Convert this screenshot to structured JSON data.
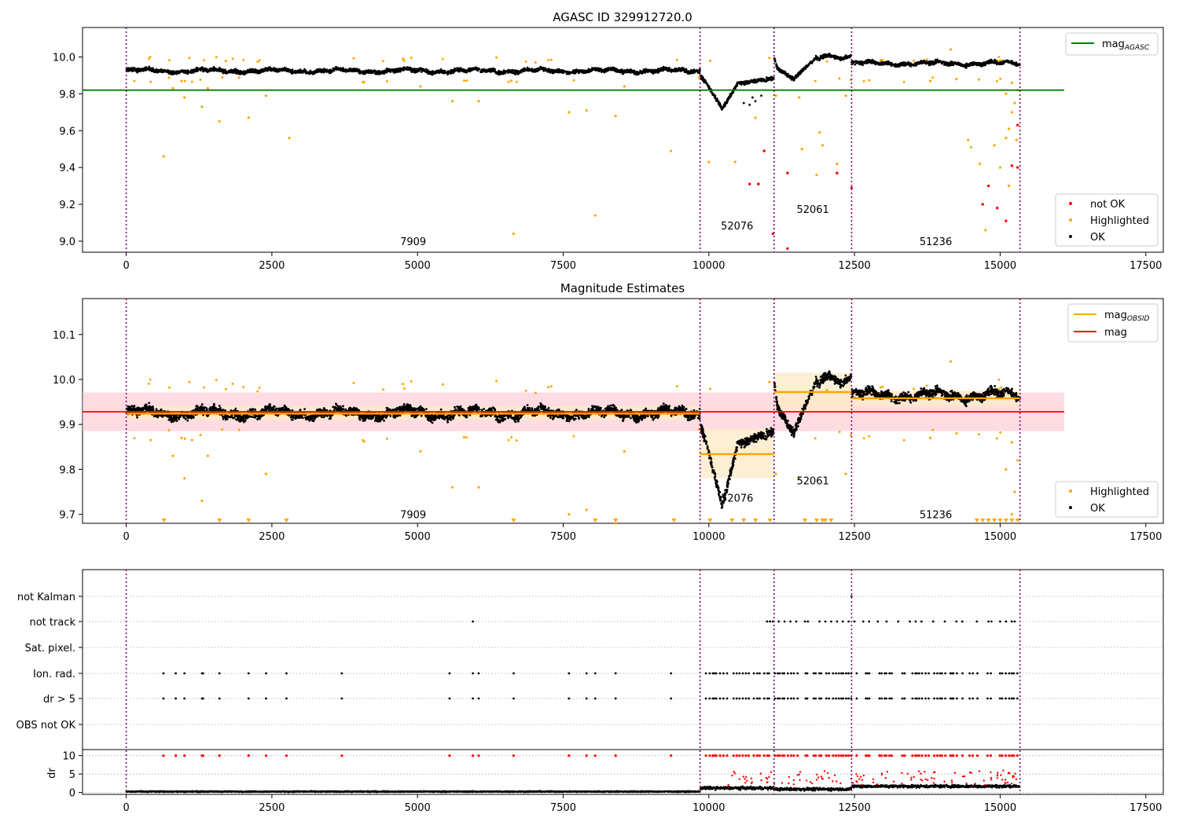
{
  "chart_data": [
    {
      "type": "scatter",
      "title": "AGASC ID 329912720.0",
      "xlim": [
        -750,
        17800
      ],
      "ylim": [
        8.94,
        10.16
      ],
      "xticks": [
        0,
        2500,
        5000,
        7500,
        10000,
        12500,
        15000,
        17500
      ],
      "yticks": [
        9.0,
        9.2,
        9.4,
        9.6,
        9.8,
        10.0
      ],
      "ytick_labels": [
        "9.0",
        "9.2",
        "9.4",
        "9.6",
        "9.8",
        "10.0"
      ],
      "obs_boundaries": [
        0,
        9850,
        11120,
        12450,
        15340
      ],
      "obs_labels": [
        {
          "text": "7909",
          "x": 4925,
          "y": 9.0
        },
        {
          "text": "52076",
          "x": 10485,
          "y": 9.085
        },
        {
          "text": "52061",
          "x": 11785,
          "y": 9.175
        },
        {
          "text": "51236",
          "x": 13895,
          "y": 9.0
        }
      ],
      "mag_agasc": 9.82,
      "mag_agasc_line": {
        "x": [
          0,
          16100
        ],
        "color": "#008000"
      },
      "ok_trend": [
        {
          "x0": 0,
          "x1": 9850,
          "base": 9.925,
          "amp": 0.012,
          "jitter": 0.014
        },
        {
          "x0": 9850,
          "x1": 11120,
          "shape": "dip52076"
        },
        {
          "x0": 11120,
          "x1": 12450,
          "shape": "rise52061"
        },
        {
          "x0": 12450,
          "x1": 15340,
          "base": 9.965,
          "amp": 0.012,
          "jitter": 0.015
        }
      ],
      "highlighted": [
        [
          640,
          9.46
        ],
        [
          2800,
          9.56
        ],
        [
          1600,
          9.65
        ],
        [
          2100,
          9.67
        ],
        [
          1300,
          9.73
        ],
        [
          1000,
          9.78
        ],
        [
          2400,
          9.79
        ],
        [
          800,
          9.83
        ],
        [
          1400,
          9.83
        ],
        [
          950,
          9.87
        ],
        [
          5600,
          9.76
        ],
        [
          6050,
          9.76
        ],
        [
          6650,
          9.04
        ],
        [
          7600,
          9.7
        ],
        [
          7900,
          9.71
        ],
        [
          8050,
          9.14
        ],
        [
          8400,
          9.68
        ],
        [
          9350,
          9.49
        ],
        [
          5050,
          9.84
        ],
        [
          8550,
          9.84
        ],
        [
          10000,
          9.43
        ],
        [
          10450,
          9.43
        ],
        [
          10800,
          9.67
        ],
        [
          11150,
          9.79
        ],
        [
          11550,
          9.78
        ],
        [
          11600,
          9.5
        ],
        [
          11850,
          9.36
        ],
        [
          11950,
          9.52
        ],
        [
          12200,
          9.42
        ],
        [
          11900,
          9.59
        ],
        [
          12350,
          9.79
        ],
        [
          13800,
          9.87
        ],
        [
          14250,
          9.88
        ],
        [
          14150,
          10.04
        ],
        [
          14450,
          9.55
        ],
        [
          14500,
          9.51
        ],
        [
          14650,
          9.42
        ],
        [
          14750,
          9.06
        ],
        [
          14900,
          9.52
        ],
        [
          15000,
          9.4
        ],
        [
          15150,
          9.3
        ],
        [
          15100,
          9.56
        ],
        [
          15200,
          9.7
        ],
        [
          15250,
          9.75
        ],
        [
          15100,
          9.8
        ],
        [
          15200,
          9.86
        ],
        [
          15300,
          9.82
        ],
        [
          15150,
          9.61
        ],
        [
          15280,
          9.55
        ],
        [
          4750,
          9.99
        ]
      ],
      "not_ok": [
        [
          10950,
          9.49
        ],
        [
          10850,
          9.31
        ],
        [
          10700,
          9.31
        ],
        [
          11100,
          9.04
        ],
        [
          11350,
          8.96
        ],
        [
          11350,
          9.37
        ],
        [
          12200,
          9.37
        ],
        [
          12450,
          9.29
        ],
        [
          14700,
          9.2
        ],
        [
          14800,
          9.3
        ],
        [
          14950,
          9.18
        ],
        [
          15100,
          9.11
        ],
        [
          15200,
          9.41
        ],
        [
          15300,
          9.4
        ],
        [
          15300,
          9.63
        ]
      ],
      "legend_line": {
        "label": "mag",
        "sub": "AGASC"
      },
      "legend_points": [
        {
          "label": "not OK",
          "color": "#ff0000"
        },
        {
          "label": "Highlighted",
          "color": "#ffa500"
        },
        {
          "label": "OK",
          "color": "#000000"
        }
      ],
      "colors": {
        "ok": "#000000",
        "highlighted": "#ffa500",
        "not_ok": "#ff0000",
        "boundary": "#800080",
        "agasc": "#008000"
      }
    },
    {
      "type": "scatter",
      "title": "Magnitude Estimates",
      "xlim": [
        -750,
        17800
      ],
      "ylim": [
        9.68,
        10.18
      ],
      "xticks": [
        0,
        2500,
        5000,
        7500,
        10000,
        12500,
        15000,
        17500
      ],
      "yticks": [
        9.7,
        9.8,
        9.9,
        10.0,
        10.1
      ],
      "ytick_labels": [
        "9.7",
        "9.8",
        "9.9",
        "10.0",
        "10.1"
      ],
      "obs_boundaries": [
        0,
        9850,
        11120,
        12450,
        15340
      ],
      "obs_labels": [
        {
          "text": "7909",
          "x": 4925,
          "y": 9.7
        },
        {
          "text": "52076",
          "x": 10485,
          "y": 9.737
        },
        {
          "text": "52061",
          "x": 11785,
          "y": 9.775
        },
        {
          "text": "51236",
          "x": 13895,
          "y": 9.7
        }
      ],
      "mag": 9.928,
      "mag_band": [
        9.885,
        9.971
      ],
      "mag_x": [
        -750,
        16100
      ],
      "mag_obsid": [
        {
          "x0": 0,
          "x1": 9850,
          "value": 9.924,
          "band": [
            9.91,
            9.94
          ]
        },
        {
          "x0": 9850,
          "x1": 11120,
          "value": 9.834,
          "band": [
            9.78,
            9.89
          ]
        },
        {
          "x0": 11120,
          "x1": 12450,
          "value": 9.972,
          "band": [
            9.93,
            10.015
          ]
        },
        {
          "x0": 12450,
          "x1": 15340,
          "value": 9.958,
          "band": [
            9.94,
            9.975
          ]
        }
      ],
      "highlighted_below": [
        650,
        1600,
        2100,
        2750,
        6650,
        8050,
        9400,
        10020,
        10400,
        10600,
        10800,
        11050,
        11650,
        11850,
        11950,
        12000,
        12100,
        14600,
        14700,
        14800,
        14900,
        15000,
        15100,
        15200,
        15300,
        8400
      ],
      "legend": [
        {
          "label": "mag",
          "sub": "OBSID",
          "color": "#ffa500"
        },
        {
          "label": "mag",
          "sub": "",
          "color": "#ff0000"
        }
      ],
      "legend_points": [
        {
          "label": "Highlighted",
          "color": "#ffa500"
        },
        {
          "label": "OK",
          "color": "#000000"
        }
      ],
      "colors": {
        "mag": "#ff0000",
        "mag_band": "#ffc0c8",
        "mag_obsid": "#ffa500",
        "mag_obsid_band": "#fdebc8"
      }
    },
    {
      "type": "scatter",
      "title": "",
      "xlim": [
        -750,
        17800
      ],
      "xticks": [
        0,
        2500,
        5000,
        7500,
        10000,
        12500,
        15000,
        17500
      ],
      "flag_rows": [
        "not Kalman",
        "not track",
        "Sat. pixel.",
        "Ion. rad.",
        "dr > 5",
        "OBS not OK"
      ],
      "flag_events": {
        "not track": [
          5950,
          11000,
          11050,
          11100,
          11200,
          11300,
          11400,
          11500,
          11650,
          11700,
          11900,
          12000,
          12100,
          12200,
          12300,
          12400,
          12500,
          12650,
          12750,
          12900,
          13050,
          13250,
          13450,
          13550,
          13650,
          13850,
          14050,
          14250,
          14350,
          14600,
          14800,
          14850,
          15000,
          15100,
          15200,
          15250
        ],
        "not Kalman": [
          12450
        ]
      },
      "dr_ylim": [
        -0.5,
        11
      ],
      "dr_yticks": [
        0,
        5,
        10
      ],
      "dr_ylabel": "dr",
      "obs_boundaries": [
        0,
        9850,
        11120,
        12450,
        15340
      ]
    }
  ]
}
